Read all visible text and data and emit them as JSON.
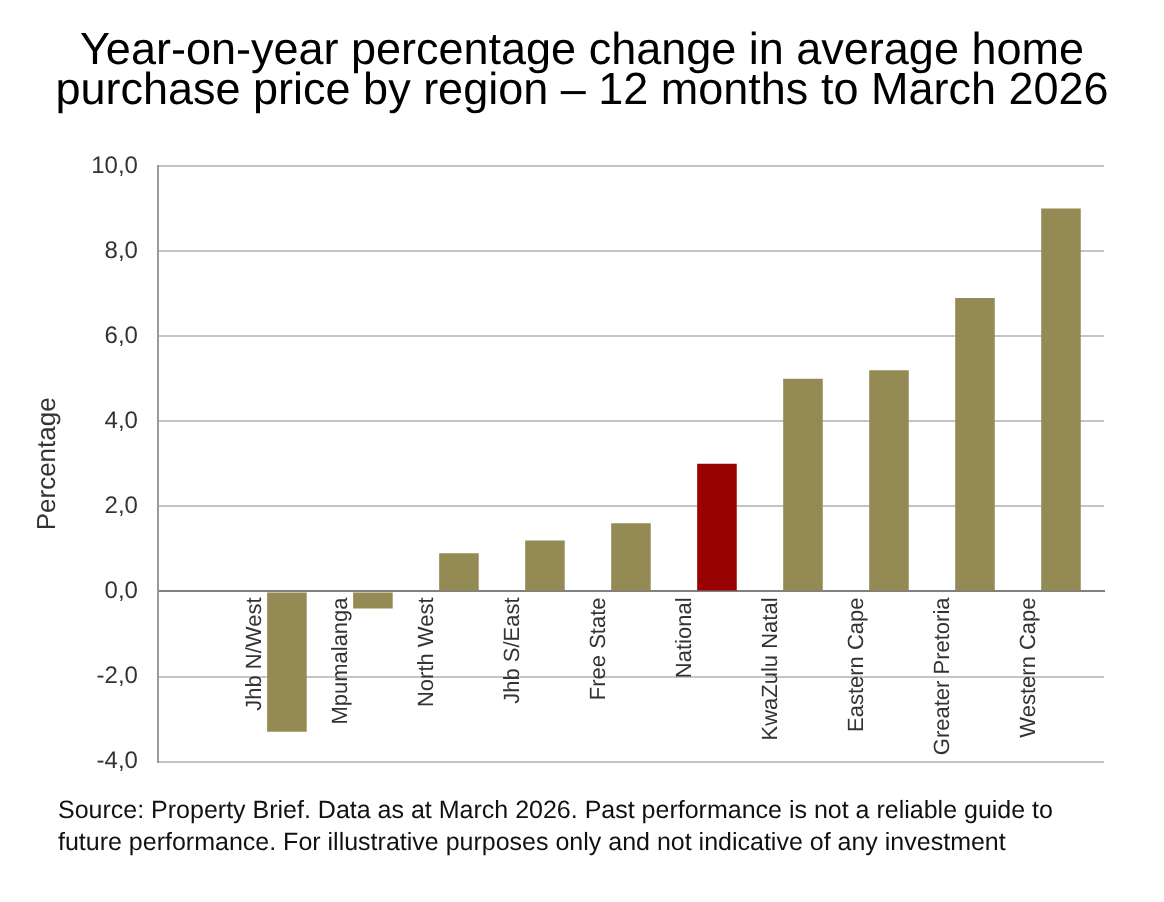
{
  "chart_data": {
    "type": "bar",
    "title": "Year-on-year percentage change in average home purchase price by region – 12 months to March 2026",
    "ylabel": "Percentage",
    "categories": [
      null,
      "Jhb N/West",
      "Mpumalanga",
      "North West",
      "Jhb S/East",
      "Free State",
      "National",
      "KwaZulu Natal",
      "Eastern Cape",
      "Greater Pretoria",
      "Western Cape"
    ],
    "values": [
      null,
      -3.3,
      -0.4,
      0.9,
      1.2,
      1.6,
      3.0,
      5.0,
      5.2,
      6.9,
      9.0
    ],
    "colors": [
      "#948a54",
      "#948a54",
      "#948a54",
      "#948a54",
      "#948a54",
      "#948a54",
      "#990000",
      "#948a54",
      "#948a54",
      "#948a54",
      "#948a54"
    ],
    "ylim": [
      -4,
      10
    ],
    "yticks": [
      {
        "value": -4,
        "label": "-4,0"
      },
      {
        "value": -2,
        "label": "-2,0"
      },
      {
        "value": 0,
        "label": "0,0"
      },
      {
        "value": 2,
        "label": "2,0"
      },
      {
        "value": 4,
        "label": "4,0"
      },
      {
        "value": 6,
        "label": "6,0"
      },
      {
        "value": 8,
        "label": "8,0"
      },
      {
        "value": 10,
        "label": "10,0"
      }
    ],
    "grid": "y",
    "annotations": [
      "Source: Property Brief. Data as at March 2026. Past performance is not a reliable guide to future performance. For illustrative purposes only and not indicative of any investment"
    ]
  }
}
